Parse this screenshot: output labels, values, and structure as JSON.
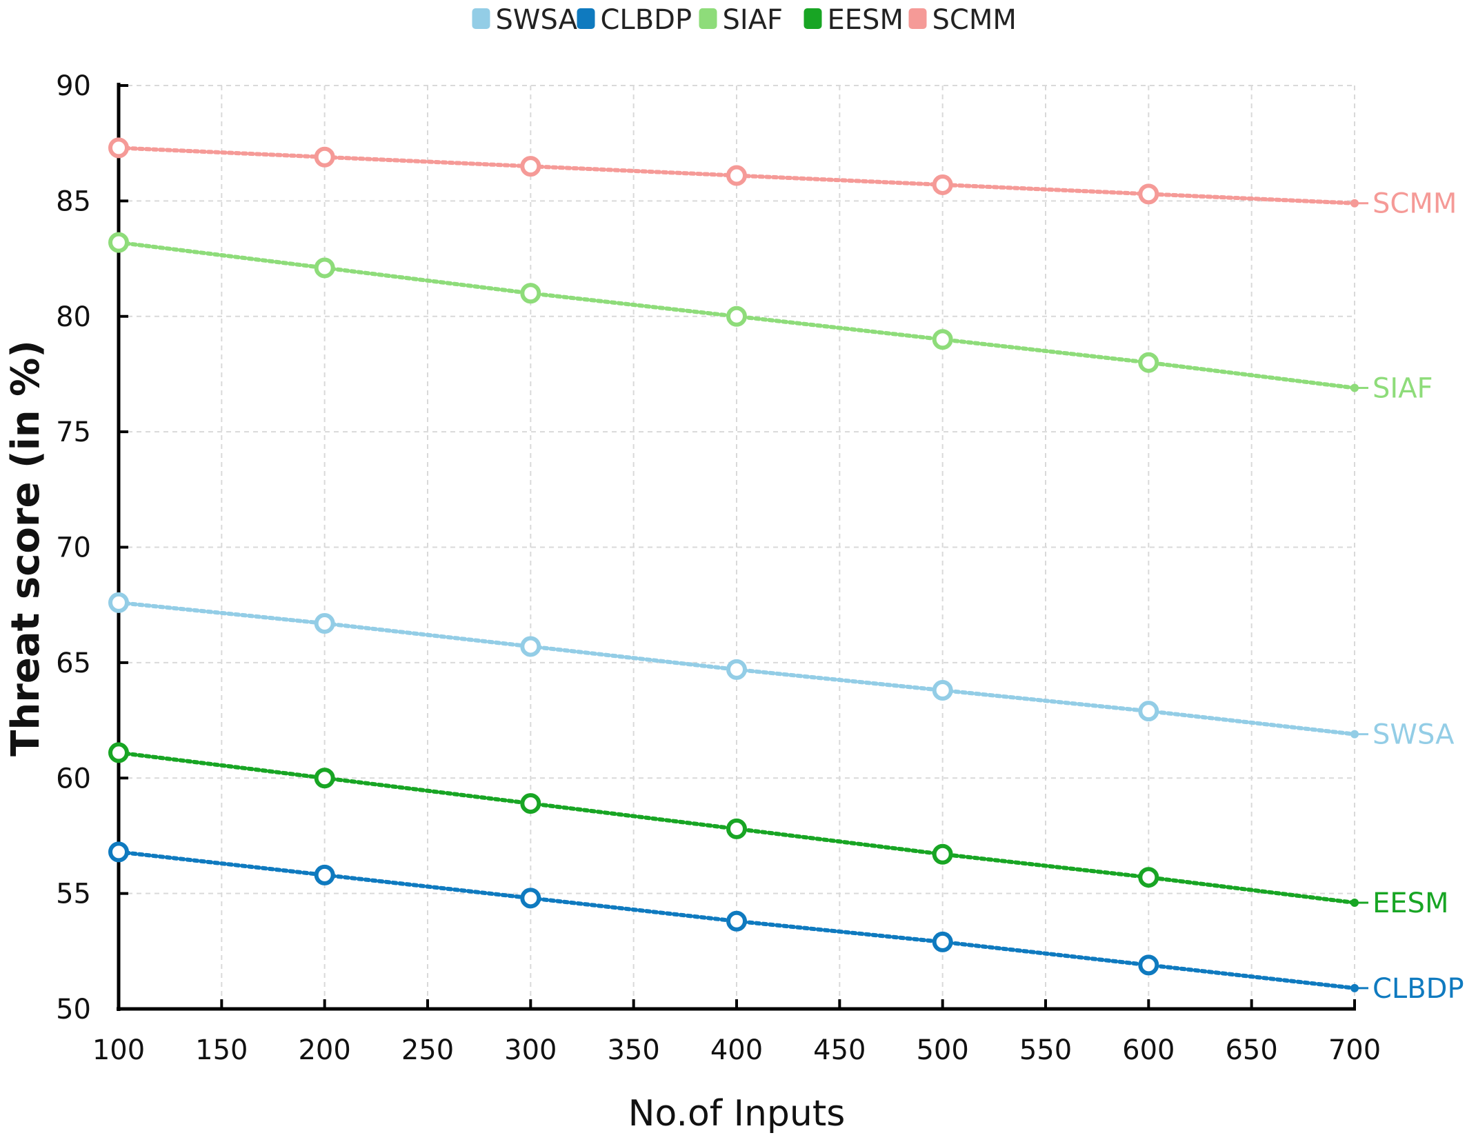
{
  "chart_data": {
    "type": "line",
    "title": "",
    "xlabel": "No.of Inputs",
    "ylabel": "Threat score (in %)",
    "x": [
      100,
      200,
      300,
      400,
      500,
      600,
      700
    ],
    "xticks": [
      100,
      150,
      200,
      250,
      300,
      350,
      400,
      450,
      500,
      550,
      600,
      650,
      700
    ],
    "yticks": [
      50,
      55,
      60,
      65,
      70,
      75,
      80,
      85,
      90
    ],
    "xlim": [
      100,
      700
    ],
    "ylim": [
      50,
      90
    ],
    "grid": true,
    "legend_position": "top",
    "series": [
      {
        "name": "SWSA",
        "color": "#93cde6",
        "values": [
          67.6,
          66.7,
          65.7,
          64.7,
          63.8,
          62.9,
          61.9
        ]
      },
      {
        "name": "CLBDP",
        "color": "#0f7abf",
        "values": [
          56.8,
          55.8,
          54.8,
          53.8,
          52.9,
          51.9,
          50.9
        ]
      },
      {
        "name": "SIAF",
        "color": "#8edc7a",
        "values": [
          83.2,
          82.1,
          81.0,
          80.0,
          79.0,
          78.0,
          76.9
        ]
      },
      {
        "name": "EESM",
        "color": "#18a524",
        "values": [
          61.1,
          60.0,
          58.9,
          57.8,
          56.7,
          55.7,
          54.6
        ]
      },
      {
        "name": "SCMM",
        "color": "#f59a97",
        "values": [
          87.3,
          86.9,
          86.5,
          86.1,
          85.7,
          85.3,
          84.9
        ]
      }
    ]
  }
}
